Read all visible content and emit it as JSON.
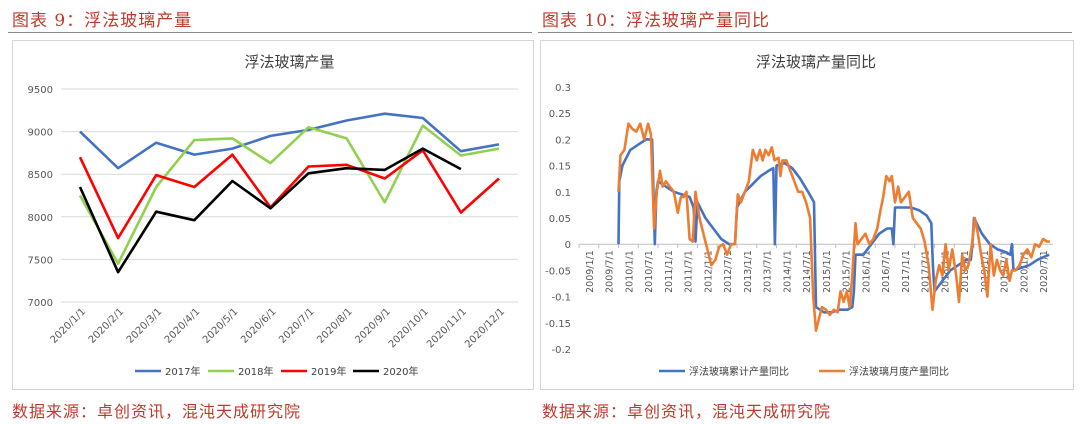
{
  "figures": {
    "left_caption": "图表 9：浮法玻璃产量",
    "right_caption": "图表 10：浮法玻璃产量同比",
    "left_source": "数据来源：卓创资讯，混沌天成研究院",
    "right_source": "数据来源：卓创资讯，混沌天成研究院"
  },
  "chart_data": [
    {
      "type": "line",
      "title": "浮法玻璃产量",
      "categories": [
        "2020/1/1",
        "2020/2/1",
        "2020/3/1",
        "2020/4/1",
        "2020/5/1",
        "2020/6/1",
        "2020/7/1",
        "2020/8/1",
        "2020/9/1",
        "2020/10/1",
        "2020/11/1",
        "2020/12/1"
      ],
      "ylim": [
        7000,
        9500
      ],
      "yticks": [
        7000,
        7500,
        8000,
        8500,
        9000,
        9500
      ],
      "grid": true,
      "legend": "bottom",
      "series": [
        {
          "name": "2017年",
          "color": "#4472c4",
          "values": [
            9000,
            8570,
            8870,
            8730,
            8800,
            8950,
            9020,
            9130,
            9210,
            9160,
            8770,
            8850
          ]
        },
        {
          "name": "2018年",
          "color": "#92d050",
          "values": [
            8250,
            7450,
            8350,
            8900,
            8920,
            8630,
            9050,
            8920,
            8170,
            9070,
            8720,
            8800
          ]
        },
        {
          "name": "2019年",
          "color": "#ff0000",
          "values": [
            8700,
            7750,
            8490,
            8350,
            8730,
            8110,
            8590,
            8610,
            8450,
            8780,
            8050,
            8450
          ]
        },
        {
          "name": "2020年",
          "color": "#000000",
          "values": [
            8350,
            7350,
            8060,
            7960,
            8420,
            8100,
            8510,
            8570,
            8550,
            8800,
            8560,
            null
          ]
        }
      ]
    },
    {
      "type": "line",
      "title": "浮法玻璃产量同比",
      "categories": [
        "2009/1/1",
        "2009/7/1",
        "2010/1/1",
        "2010/7/1",
        "2011/1/1",
        "2011/7/1",
        "2012/1/1",
        "2012/7/1",
        "2013/1/1",
        "2013/7/1",
        "2014/1/1",
        "2014/7/1",
        "2015/1/1",
        "2015/7/1",
        "2016/1/1",
        "2016/7/1",
        "2017/1/1",
        "2017/7/1",
        "2018/1/1",
        "2018/7/1",
        "2019/1/1",
        "2019/7/1",
        "2020/1/1",
        "2020/7/1"
      ],
      "ylim": [
        -0.2,
        0.3
      ],
      "yticks": [
        -0.2,
        -0.15,
        -0.1,
        -0.05,
        0,
        0.05,
        0.1,
        0.15,
        0.2,
        0.25,
        0.3
      ],
      "grid": false,
      "legend": "bottom",
      "x_start": 2009.0,
      "x_end": 2021.0,
      "series": [
        {
          "name": "浮法玻璃累计产量同比",
          "color": "#4472c4",
          "points": [
            [
              2010.0,
              0.0
            ],
            [
              2010.02,
              0.12
            ],
            [
              2010.1,
              0.15
            ],
            [
              2010.3,
              0.18
            ],
            [
              2010.5,
              0.19
            ],
            [
              2010.7,
              0.2
            ],
            [
              2010.85,
              0.2
            ],
            [
              2010.92,
              0.0
            ],
            [
              2010.96,
              0.1
            ],
            [
              2011.0,
              0.12
            ],
            [
              2011.2,
              0.11
            ],
            [
              2011.4,
              0.1
            ],
            [
              2011.6,
              0.095
            ],
            [
              2011.8,
              0.09
            ],
            [
              2011.9,
              0.07
            ],
            [
              2011.95,
              0.005
            ],
            [
              2012.0,
              0.08
            ],
            [
              2012.2,
              0.05
            ],
            [
              2012.4,
              0.03
            ],
            [
              2012.6,
              0.01
            ],
            [
              2012.8,
              0.0
            ],
            [
              2012.95,
              0.0
            ],
            [
              2013.0,
              0.07
            ],
            [
              2013.2,
              0.1
            ],
            [
              2013.4,
              0.115
            ],
            [
              2013.6,
              0.13
            ],
            [
              2013.8,
              0.14
            ],
            [
              2013.92,
              0.145
            ],
            [
              2013.96,
              0.0
            ],
            [
              2014.0,
              0.15
            ],
            [
              2014.2,
              0.155
            ],
            [
              2014.4,
              0.145
            ],
            [
              2014.6,
              0.125
            ],
            [
              2014.8,
              0.1
            ],
            [
              2014.95,
              0.08
            ],
            [
              2015.0,
              -0.12
            ],
            [
              2015.2,
              -0.13
            ],
            [
              2015.4,
              -0.13
            ],
            [
              2015.6,
              -0.125
            ],
            [
              2015.8,
              -0.125
            ],
            [
              2015.92,
              -0.12
            ],
            [
              2015.96,
              -0.09
            ],
            [
              2016.0,
              -0.02
            ],
            [
              2016.2,
              -0.02
            ],
            [
              2016.4,
              0.0
            ],
            [
              2016.6,
              0.02
            ],
            [
              2016.8,
              0.03
            ],
            [
              2016.92,
              0.03
            ],
            [
              2016.96,
              0.0
            ],
            [
              2017.0,
              0.07
            ],
            [
              2017.2,
              0.07
            ],
            [
              2017.4,
              0.07
            ],
            [
              2017.6,
              0.065
            ],
            [
              2017.8,
              0.055
            ],
            [
              2017.92,
              0.04
            ],
            [
              2017.96,
              -0.04
            ],
            [
              2018.0,
              -0.09
            ],
            [
              2018.2,
              -0.07
            ],
            [
              2018.4,
              -0.05
            ],
            [
              2018.6,
              -0.04
            ],
            [
              2018.8,
              -0.03
            ],
            [
              2018.92,
              -0.03
            ],
            [
              2018.96,
              0.0
            ],
            [
              2019.0,
              0.05
            ],
            [
              2019.2,
              0.02
            ],
            [
              2019.4,
              0.0
            ],
            [
              2019.6,
              -0.01
            ],
            [
              2019.8,
              -0.015
            ],
            [
              2019.92,
              -0.02
            ],
            [
              2019.96,
              0.0
            ],
            [
              2020.0,
              -0.05
            ],
            [
              2020.2,
              -0.045
            ],
            [
              2020.4,
              -0.04
            ],
            [
              2020.6,
              -0.03
            ],
            [
              2020.75,
              -0.025
            ],
            [
              2020.9,
              -0.02
            ]
          ]
        },
        {
          "name": "浮法玻璃月度产量同比",
          "color": "#ed7d31",
          "points": [
            [
              2010.0,
              0.1
            ],
            [
              2010.05,
              0.17
            ],
            [
              2010.15,
              0.18
            ],
            [
              2010.25,
              0.23
            ],
            [
              2010.35,
              0.22
            ],
            [
              2010.45,
              0.215
            ],
            [
              2010.55,
              0.23
            ],
            [
              2010.65,
              0.2
            ],
            [
              2010.75,
              0.23
            ],
            [
              2010.82,
              0.21
            ],
            [
              2010.9,
              0.03
            ],
            [
              2010.97,
              0.1
            ],
            [
              2011.05,
              0.14
            ],
            [
              2011.12,
              0.11
            ],
            [
              2011.2,
              0.12
            ],
            [
              2011.3,
              0.11
            ],
            [
              2011.4,
              0.1
            ],
            [
              2011.5,
              0.06
            ],
            [
              2011.58,
              0.09
            ],
            [
              2011.65,
              0.09
            ],
            [
              2011.72,
              0.1
            ],
            [
              2011.8,
              0.01
            ],
            [
              2011.88,
              0.005
            ],
            [
              2011.95,
              0.1
            ],
            [
              2012.05,
              0.05
            ],
            [
              2012.15,
              0.02
            ],
            [
              2012.25,
              -0.01
            ],
            [
              2012.35,
              -0.04
            ],
            [
              2012.45,
              -0.03
            ],
            [
              2012.55,
              -0.005
            ],
            [
              2012.65,
              0.0
            ],
            [
              2012.75,
              -0.02
            ],
            [
              2012.85,
              0.0
            ],
            [
              2012.95,
              0.0
            ],
            [
              2013.02,
              0.095
            ],
            [
              2013.1,
              0.08
            ],
            [
              2013.2,
              0.1
            ],
            [
              2013.3,
              0.12
            ],
            [
              2013.4,
              0.18
            ],
            [
              2013.5,
              0.16
            ],
            [
              2013.58,
              0.18
            ],
            [
              2013.65,
              0.16
            ],
            [
              2013.72,
              0.18
            ],
            [
              2013.8,
              0.17
            ],
            [
              2013.88,
              0.185
            ],
            [
              2013.95,
              0.16
            ],
            [
              2014.05,
              0.165
            ],
            [
              2014.1,
              0.13
            ],
            [
              2014.15,
              0.16
            ],
            [
              2014.25,
              0.16
            ],
            [
              2014.35,
              0.14
            ],
            [
              2014.45,
              0.12
            ],
            [
              2014.55,
              0.1
            ],
            [
              2014.65,
              0.1
            ],
            [
              2014.75,
              0.08
            ],
            [
              2014.85,
              0.05
            ],
            [
              2014.93,
              -0.1
            ],
            [
              2015.0,
              -0.165
            ],
            [
              2015.08,
              -0.14
            ],
            [
              2015.15,
              -0.12
            ],
            [
              2015.25,
              -0.125
            ],
            [
              2015.35,
              -0.135
            ],
            [
              2015.45,
              -0.125
            ],
            [
              2015.55,
              -0.13
            ],
            [
              2015.62,
              -0.09
            ],
            [
              2015.7,
              -0.11
            ],
            [
              2015.78,
              -0.09
            ],
            [
              2015.85,
              -0.12
            ],
            [
              2015.92,
              -0.06
            ],
            [
              2016.0,
              0.04
            ],
            [
              2016.05,
              0.0
            ],
            [
              2016.15,
              0.01
            ],
            [
              2016.25,
              0.02
            ],
            [
              2016.35,
              0.0
            ],
            [
              2016.45,
              0.01
            ],
            [
              2016.55,
              0.03
            ],
            [
              2016.62,
              0.06
            ],
            [
              2016.7,
              0.09
            ],
            [
              2016.78,
              0.13
            ],
            [
              2016.86,
              0.12
            ],
            [
              2016.92,
              0.13
            ],
            [
              2017.0,
              0.08
            ],
            [
              2017.08,
              0.11
            ],
            [
              2017.15,
              0.08
            ],
            [
              2017.25,
              0.09
            ],
            [
              2017.35,
              0.1
            ],
            [
              2017.45,
              0.05
            ],
            [
              2017.55,
              0.04
            ],
            [
              2017.65,
              0.03
            ],
            [
              2017.75,
              0.005
            ],
            [
              2017.85,
              -0.04
            ],
            [
              2017.95,
              -0.125
            ],
            [
              2018.03,
              -0.07
            ],
            [
              2018.12,
              -0.04
            ],
            [
              2018.2,
              -0.06
            ],
            [
              2018.28,
              0.0
            ],
            [
              2018.36,
              -0.05
            ],
            [
              2018.45,
              -0.01
            ],
            [
              2018.55,
              -0.06
            ],
            [
              2018.62,
              -0.11
            ],
            [
              2018.7,
              -0.02
            ],
            [
              2018.78,
              -0.05
            ],
            [
              2018.86,
              -0.04
            ],
            [
              2018.95,
              0.0
            ],
            [
              2019.02,
              0.05
            ],
            [
              2019.1,
              0.02
            ],
            [
              2019.18,
              -0.02
            ],
            [
              2019.26,
              -0.05
            ],
            [
              2019.34,
              -0.1
            ],
            [
              2019.42,
              0.0
            ],
            [
              2019.5,
              -0.06
            ],
            [
              2019.58,
              -0.03
            ],
            [
              2019.66,
              -0.05
            ],
            [
              2019.74,
              -0.06
            ],
            [
              2019.82,
              -0.03
            ],
            [
              2019.9,
              -0.07
            ],
            [
              2019.96,
              -0.05
            ],
            [
              2020.05,
              -0.05
            ],
            [
              2020.15,
              -0.04
            ],
            [
              2020.25,
              -0.02
            ],
            [
              2020.35,
              -0.01
            ],
            [
              2020.45,
              -0.025
            ],
            [
              2020.55,
              0.0
            ],
            [
              2020.65,
              -0.005
            ],
            [
              2020.75,
              0.01
            ],
            [
              2020.85,
              0.005
            ],
            [
              2020.92,
              0.005
            ]
          ]
        }
      ]
    }
  ]
}
